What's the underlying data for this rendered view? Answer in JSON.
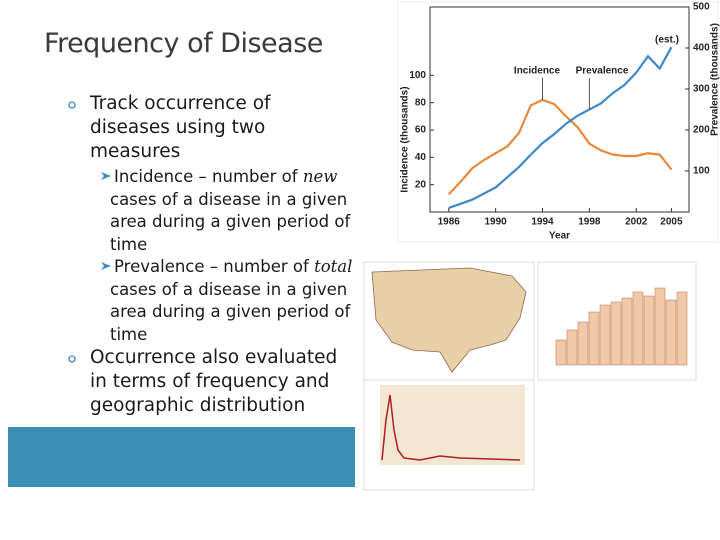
{
  "header": {
    "title": "Frequency of Disease"
  },
  "bullets": [
    {
      "text": "Track occurrence of diseases using two measures",
      "sub": [
        {
          "parts": [
            "Incidence – number of ",
            "new",
            " cases of a disease in a given area during a given period of time"
          ]
        },
        {
          "parts": [
            "Prevalence – number of ",
            "total",
            " cases of a disease in a given area during a given period of time"
          ]
        }
      ]
    },
    {
      "text": "Occurrence also evaluated in terms of frequency and geographic distribution",
      "sub": []
    }
  ],
  "chart_data": {
    "type": "line",
    "x": [
      1986,
      1987,
      1988,
      1989,
      1990,
      1991,
      1992,
      1993,
      1994,
      1995,
      1996,
      1997,
      1998,
      1999,
      2000,
      2001,
      2002,
      2003,
      2004,
      2005
    ],
    "series": [
      {
        "name": "Incidence",
        "color": "#e8883a",
        "values": [
          13,
          22,
          32,
          38,
          43,
          48,
          58,
          78,
          82,
          79,
          70,
          62,
          50,
          45,
          42,
          41,
          41,
          43,
          42,
          31
        ]
      },
      {
        "name": "Prevalence",
        "color": "#3f87c9",
        "axis": "y2",
        "values": [
          10,
          20,
          30,
          45,
          60,
          85,
          110,
          140,
          168,
          190,
          215,
          235,
          250,
          265,
          290,
          310,
          340,
          380,
          350,
          402
        ]
      }
    ],
    "ylabel": "Incidence (thousands)",
    "y2label": "Prevalence (thousands)",
    "xlabel": "Year",
    "xlim": [
      1984.4,
      2006.5
    ],
    "xticks": [
      1986,
      1990,
      1994,
      1998,
      2002,
      2005
    ],
    "ylim": [
      0,
      150
    ],
    "yticks": [
      20,
      40,
      60,
      80,
      100
    ],
    "y2lim": [
      0,
      500
    ],
    "y2ticks": [
      100,
      200,
      300,
      400,
      500
    ],
    "annotations": [
      "Incidence",
      "Prevalence",
      "(est.)"
    ]
  }
}
